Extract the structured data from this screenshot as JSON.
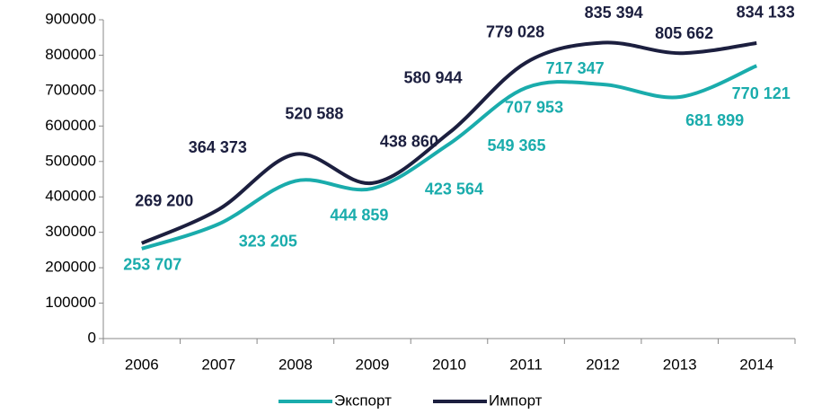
{
  "chart_data": {
    "type": "line",
    "categories": [
      "2006",
      "2007",
      "2008",
      "2009",
      "2010",
      "2011",
      "2012",
      "2013",
      "2014"
    ],
    "series": [
      {
        "name": "Экспорт",
        "color": "#1aacac",
        "values": [
          253707,
          323205,
          444859,
          423564,
          549365,
          707953,
          717347,
          681899,
          770121
        ],
        "value_labels": [
          "253 707",
          "323 205",
          "444 859",
          "423 564",
          "549 365",
          "707 953",
          "717 347",
          "681 899",
          "770 121"
        ]
      },
      {
        "name": "Импорт",
        "color": "#1c1f3f",
        "values": [
          269200,
          364373,
          520588,
          438860,
          580944,
          779028,
          835394,
          805662,
          834133
        ],
        "value_labels": [
          "269 200",
          "364 373",
          "520 588",
          "438 860",
          "580 944",
          "779 028",
          "835 394",
          "805 662",
          "834 133"
        ]
      }
    ],
    "ylim": [
      0,
      900000
    ],
    "yticks": [
      0,
      100000,
      200000,
      300000,
      400000,
      500000,
      600000,
      700000,
      800000,
      900000
    ],
    "legend": "bottom"
  }
}
